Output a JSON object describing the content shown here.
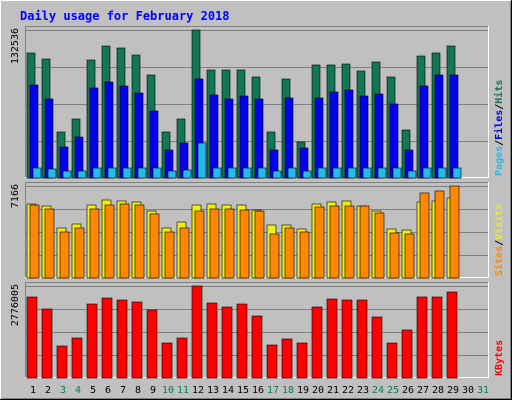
{
  "chart_data": {
    "type": "bar",
    "title": "Daily usage for February 2018",
    "days": [
      "1",
      "2",
      "3",
      "4",
      "5",
      "6",
      "7",
      "8",
      "9",
      "10",
      "11",
      "12",
      "13",
      "14",
      "15",
      "16",
      "17",
      "18",
      "19",
      "20",
      "21",
      "22",
      "23",
      "24",
      "25",
      "26",
      "27",
      "28",
      "29",
      "30",
      "31"
    ],
    "weekend_days": [
      "3",
      "4",
      "10",
      "11",
      "17",
      "18",
      "24",
      "25",
      "31"
    ],
    "panels": [
      {
        "id": "hits-files-pages",
        "ymax_label": "132536",
        "ymax": 132536,
        "series": [
          {
            "name": "Hits",
            "color": "#117755",
            "values": [
              112000,
              107000,
              41000,
              53000,
              106000,
              118000,
              116000,
              110000,
              92000,
              41000,
              53000,
              132536,
              97000,
              97000,
              97000,
              90000,
              41000,
              89000,
              32000,
              101000,
              101000,
              102000,
              96000,
              104000,
              90000,
              43000,
              109000,
              112000,
              118000,
              null,
              null
            ]
          },
          {
            "name": "Files",
            "color": "#0000ee",
            "values": [
              83000,
              71000,
              28000,
              37000,
              81000,
              86000,
              82000,
              76000,
              60000,
              25000,
              31000,
              89000,
              74000,
              71000,
              73000,
              71000,
              25000,
              72000,
              27000,
              72000,
              77000,
              79000,
              73000,
              75000,
              66000,
              25000,
              82000,
              92000,
              92000,
              null,
              null
            ]
          },
          {
            "name": "Pages",
            "color": "#22bbee",
            "values": [
              8800,
              8400,
              6600,
              6600,
              8800,
              9300,
              9300,
              9300,
              8800,
              6600,
              7000,
              31000,
              8800,
              8800,
              8800,
              8800,
              6600,
              8800,
              6600,
              8800,
              8800,
              8800,
              8800,
              8800,
              8800,
              6600,
              8800,
              8800,
              8800,
              null,
              null
            ]
          }
        ],
        "legend": [
          {
            "label": "Pages",
            "color": "#22bbee"
          },
          {
            "label": "/",
            "color": "#000000"
          },
          {
            "label": "Files",
            "color": "#0000ee"
          },
          {
            "label": "/",
            "color": "#000000"
          },
          {
            "label": "Hits",
            "color": "#117755"
          }
        ]
      },
      {
        "id": "visits-sites",
        "ymax_label": "7166",
        "ymax": 7166,
        "series": [
          {
            "name": "Visits",
            "color": "#eeee11",
            "values": [
              5800,
              5600,
              3900,
              4200,
              5700,
              6100,
              6000,
              5900,
              5200,
              3900,
              4400,
              5700,
              5800,
              5700,
              5700,
              5300,
              4100,
              4100,
              3800,
              5800,
              5900,
              6000,
              5600,
              5200,
              3800,
              3700,
              5900,
              6000,
              6200,
              null,
              null
            ]
          },
          {
            "name": "Sites",
            "color": "#ff8800",
            "values": [
              5700,
              5400,
              3600,
              3900,
              5400,
              5700,
              5800,
              5700,
              5000,
              3600,
              3900,
              5200,
              5400,
              5400,
              5300,
              5200,
              3400,
              3900,
              3600,
              5500,
              5600,
              5600,
              5600,
              5100,
              3500,
              3400,
              6600,
              6800,
              7166,
              null,
              null
            ]
          }
        ],
        "legend": [
          {
            "label": "Sites",
            "color": "#ff8800"
          },
          {
            "label": "/",
            "color": "#000000"
          },
          {
            "label": "Visits",
            "color": "#eeee11"
          }
        ]
      },
      {
        "id": "kbytes",
        "ymax_label": "2776005",
        "ymax": 2776005,
        "series": [
          {
            "name": "KBytes",
            "color": "#ff0000",
            "values": [
              2430000,
              2090000,
              980000,
              1200000,
              2220000,
              2400000,
              2340000,
              2290000,
              2060000,
              1050000,
              1220000,
              2776005,
              2250000,
              2150000,
              2220000,
              1880000,
              1000000,
              1170000,
              1050000,
              2140000,
              2370000,
              2340000,
              2350000,
              1840000,
              1070000,
              1460000,
              2430000,
              2450000,
              2610000,
              null,
              null
            ]
          }
        ],
        "legend": [
          {
            "label": "KBytes",
            "color": "#ff0000"
          }
        ]
      }
    ]
  }
}
